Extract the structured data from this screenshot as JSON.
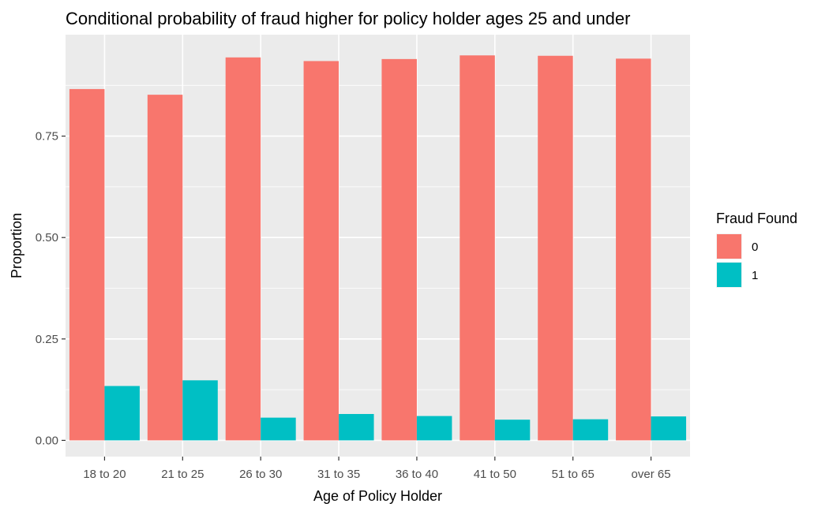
{
  "chart_data": {
    "type": "bar",
    "title": "Conditional probability of fraud higher for policy holder ages 25 and under",
    "xlabel": "Age of Policy Holder",
    "ylabel": "Proportion",
    "categories": [
      "18 to 20",
      "21 to 25",
      "26 to 30",
      "31 to 35",
      "36 to 40",
      "41 to 50",
      "51 to 65",
      "over 65"
    ],
    "series": [
      {
        "name": "0",
        "color": "#F8766D",
        "values": [
          0.866,
          0.852,
          0.944,
          0.935,
          0.94,
          0.949,
          0.948,
          0.941
        ]
      },
      {
        "name": "1",
        "color": "#00BFC4",
        "values": [
          0.134,
          0.148,
          0.056,
          0.065,
          0.06,
          0.051,
          0.052,
          0.059
        ]
      }
    ],
    "ylim": [
      -0.04,
      1.0
    ],
    "yticks": [
      0.0,
      0.25,
      0.5,
      0.75
    ],
    "ytick_labels": [
      "0.00",
      "0.25",
      "0.50",
      "0.75"
    ],
    "legend": {
      "title": "Fraud Found",
      "position": "right"
    },
    "grid": true,
    "panel_background": "#EBEBEB",
    "grid_color": "#FFFFFF"
  }
}
